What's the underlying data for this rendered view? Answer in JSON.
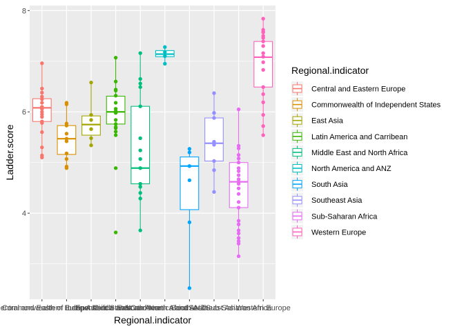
{
  "chart_data": {
    "type": "boxplot",
    "xlabel": "Regional.indicator",
    "ylabel": "Ladder.score",
    "ylim": [
      2.3,
      8.1
    ],
    "yticks": [
      4,
      6,
      8
    ],
    "grid": true,
    "legend": {
      "title": "Regional.indicator",
      "position": "right"
    },
    "groups": [
      {
        "name": "Central and Eastern Europe",
        "color": "#F8766D",
        "q1": 5.81,
        "median": 6.08,
        "q3": 6.26,
        "whisker_low": 5.1,
        "whisker_high": 6.96,
        "points": [
          6.96,
          6.46,
          6.38,
          6.3,
          6.25,
          6.18,
          6.1,
          6.08,
          6.06,
          6.0,
          5.95,
          5.9,
          5.81,
          5.78,
          5.6,
          5.3,
          5.14,
          5.1
        ]
      },
      {
        "name": "Commonwealth of Independent States",
        "color": "#D89000",
        "q1": 5.16,
        "median": 5.47,
        "q3": 5.73,
        "whisker_low": 4.89,
        "whisker_high": 6.18,
        "points": [
          6.18,
          6.15,
          5.77,
          5.73,
          5.57,
          5.47,
          5.42,
          5.18,
          5.07,
          4.92,
          4.89
        ]
      },
      {
        "name": "East Asia",
        "color": "#A3A500",
        "q1": 5.54,
        "median": 5.75,
        "q3": 5.92,
        "whisker_low": 5.34,
        "whisker_high": 6.58,
        "points": [
          6.58,
          5.94,
          5.84,
          5.66,
          5.48,
          5.34
        ]
      },
      {
        "name": "Latin America and Carribean",
        "color": "#39B600",
        "q1": 5.76,
        "median": 6.0,
        "q3": 6.31,
        "whisker_low": 5.54,
        "whisker_high": 7.07,
        "points": [
          7.07,
          6.6,
          6.44,
          6.42,
          6.32,
          6.18,
          6.06,
          6.01,
          5.98,
          5.84,
          5.76,
          5.7,
          5.68,
          5.61,
          5.54,
          4.89,
          3.62
        ]
      },
      {
        "name": "Middle East and North Africa",
        "color": "#00BF7D",
        "q1": 4.58,
        "median": 4.89,
        "q3": 6.11,
        "whisker_low": 3.66,
        "whisker_high": 7.16,
        "points": [
          7.16,
          6.65,
          6.56,
          6.49,
          6.11,
          5.48,
          5.24,
          5.07,
          4.89,
          4.58,
          4.52,
          4.4,
          4.29,
          3.66
        ]
      },
      {
        "name": "North America and ANZ",
        "color": "#00BFC4",
        "q1": 7.09,
        "median": 7.14,
        "q3": 7.21,
        "whisker_low": 6.95,
        "whisker_high": 7.28,
        "points": [
          7.28,
          7.18,
          7.1,
          6.95
        ]
      },
      {
        "name": "South Asia",
        "color": "#00A5FF",
        "q1": 4.07,
        "median": 4.93,
        "q3": 5.11,
        "whisker_low": 2.52,
        "whisker_high": 5.27,
        "points": [
          5.27,
          5.2,
          4.93,
          4.65,
          3.82,
          2.52
        ]
      },
      {
        "name": "Southeast Asia",
        "color": "#9590FF",
        "q1": 5.03,
        "median": 5.38,
        "q3": 5.88,
        "whisker_low": 4.42,
        "whisker_high": 6.37,
        "points": [
          6.37,
          5.98,
          5.88,
          5.41,
          5.35,
          5.03,
          4.85,
          4.42
        ]
      },
      {
        "name": "Sub-Saharan Africa",
        "color": "#E76BF3",
        "q1": 4.11,
        "median": 4.62,
        "q3": 5.0,
        "whisker_low": 3.15,
        "whisker_high": 6.05,
        "points": [
          6.05,
          5.33,
          5.28,
          5.15,
          5.08,
          5.0,
          4.89,
          4.83,
          4.75,
          4.67,
          4.62,
          4.58,
          4.49,
          4.38,
          4.22,
          4.11,
          3.85,
          3.78,
          3.66,
          3.6,
          3.51,
          3.45,
          3.4,
          3.15
        ]
      },
      {
        "name": "Western Europe",
        "color": "#FF62BC",
        "q1": 6.49,
        "median": 7.08,
        "q3": 7.39,
        "whisker_low": 5.54,
        "whisker_high": 7.84,
        "points": [
          7.84,
          7.62,
          7.58,
          7.57,
          7.5,
          7.46,
          7.39,
          7.3,
          7.16,
          7.09,
          6.98,
          6.83,
          6.49,
          6.35,
          6.19,
          5.94,
          5.72,
          5.54
        ]
      }
    ]
  }
}
